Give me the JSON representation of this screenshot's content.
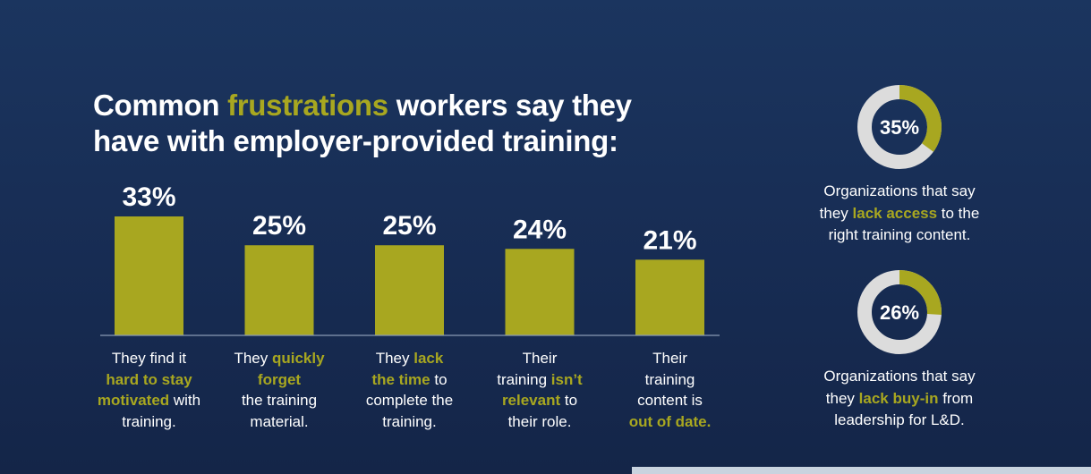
{
  "headline": {
    "line1_pre": "Common ",
    "line1_hl": "frustrations",
    "line1_post": " workers say they",
    "line2": "have with employer-provided training:"
  },
  "colors": {
    "accent": "#a8a720",
    "background": "#172c53",
    "white": "#ffffff",
    "ring_track": "#dcdcdc"
  },
  "chart_data": [
    {
      "type": "bar",
      "categories": [
        "They find it hard to stay motivated with training.",
        "They quickly forget the training material.",
        "They lack the time to complete the training.",
        "Their training isn’t relevant to their role.",
        "Their training content is out of date."
      ],
      "values": [
        33,
        25,
        25,
        24,
        21
      ],
      "data_labels": [
        "33%",
        "25%",
        "25%",
        "24%",
        "21%"
      ],
      "title": "Common frustrations workers say they have with employer-provided training:",
      "ylim": [
        0,
        33
      ],
      "grid": false
    },
    {
      "type": "pie",
      "values": [
        35,
        65
      ],
      "center_label": "35%",
      "caption": "Organizations that say they lack access to the right training content."
    },
    {
      "type": "pie",
      "values": [
        26,
        74
      ],
      "center_label": "26%",
      "caption": "Organizations that say they lack buy-in from leadership for L&D."
    }
  ],
  "bar_labels": [
    [
      [
        {
          "t": "They find it",
          "h": false
        }
      ],
      [
        {
          "t": "hard to stay",
          "h": true
        }
      ],
      [
        {
          "t": "motivated",
          "h": true
        },
        {
          "t": " with",
          "h": false
        }
      ],
      [
        {
          "t": "training.",
          "h": false
        }
      ]
    ],
    [
      [
        {
          "t": "They ",
          "h": false
        },
        {
          "t": "quickly",
          "h": true
        }
      ],
      [
        {
          "t": "forget",
          "h": true
        }
      ],
      [
        {
          "t": "the training",
          "h": false
        }
      ],
      [
        {
          "t": "material.",
          "h": false
        }
      ]
    ],
    [
      [
        {
          "t": "They ",
          "h": false
        },
        {
          "t": "lack",
          "h": true
        }
      ],
      [
        {
          "t": "the time",
          "h": true
        },
        {
          "t": " to",
          "h": false
        }
      ],
      [
        {
          "t": "complete the",
          "h": false
        }
      ],
      [
        {
          "t": "training.",
          "h": false
        }
      ]
    ],
    [
      [
        {
          "t": "Their",
          "h": false
        }
      ],
      [
        {
          "t": "training ",
          "h": false
        },
        {
          "t": "isn’t",
          "h": true
        }
      ],
      [
        {
          "t": "relevant",
          "h": true
        },
        {
          "t": " to",
          "h": false
        }
      ],
      [
        {
          "t": "their role.",
          "h": false
        }
      ]
    ],
    [
      [
        {
          "t": "Their",
          "h": false
        }
      ],
      [
        {
          "t": "training",
          "h": false
        }
      ],
      [
        {
          "t": "content is",
          "h": false
        }
      ],
      [
        {
          "t": "out of date.",
          "h": true
        }
      ]
    ]
  ],
  "donut_captions": [
    [
      [
        {
          "t": "Organizations that say",
          "h": false
        }
      ],
      [
        {
          "t": "they ",
          "h": false
        },
        {
          "t": "lack access",
          "h": true
        },
        {
          "t": " to the",
          "h": false
        }
      ],
      [
        {
          "t": "right training content.",
          "h": false
        }
      ]
    ],
    [
      [
        {
          "t": "Organizations that say",
          "h": false
        }
      ],
      [
        {
          "t": "they ",
          "h": false
        },
        {
          "t": "lack buy-in",
          "h": true
        },
        {
          "t": " from",
          "h": false
        }
      ],
      [
        {
          "t": "leadership for L&D.",
          "h": false
        }
      ]
    ]
  ]
}
